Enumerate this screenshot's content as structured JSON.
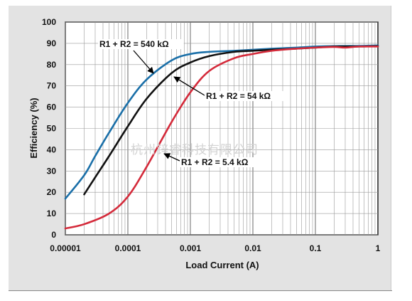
{
  "chart_data": {
    "type": "line",
    "xscale": "log",
    "xlim": [
      1e-05,
      1
    ],
    "ylim": [
      0,
      100
    ],
    "xlabel": "Load Current (A)",
    "ylabel": "Efficiency (%)",
    "x_tick_labels": [
      "0.00001",
      "0.0001",
      "0.001",
      "0.01",
      "0.1",
      "1"
    ],
    "x_ticks": [
      1e-05,
      0.0001,
      0.001,
      0.01,
      0.1,
      1
    ],
    "y_ticks": [
      0,
      10,
      20,
      30,
      40,
      50,
      60,
      70,
      80,
      90,
      100
    ],
    "grid": true,
    "series": [
      {
        "name": "R1 + R2 = 540 kΩ",
        "color": "#1a6fa8",
        "x": [
          1e-05,
          2e-05,
          3e-05,
          5e-05,
          0.0001,
          0.0002,
          0.0005,
          0.001,
          0.002,
          0.005,
          0.01,
          0.02,
          0.05,
          0.1,
          0.2,
          0.5,
          1
        ],
        "y": [
          17,
          28,
          37,
          48,
          62,
          73,
          82,
          85,
          86,
          86.5,
          87,
          87.5,
          88,
          88.5,
          88.7,
          88.8,
          89
        ]
      },
      {
        "name": "R1 + R2 = 54 kΩ",
        "color": "#111111",
        "x": [
          2e-05,
          3e-05,
          5e-05,
          0.0001,
          0.0002,
          0.0005,
          0.001,
          0.002,
          0.005,
          0.01,
          0.02,
          0.05,
          0.1,
          0.2,
          0.5,
          1
        ],
        "y": [
          19,
          27,
          37,
          51,
          64,
          76,
          81,
          84,
          86,
          86.5,
          87,
          87.5,
          88,
          88.5,
          88.5,
          88.7
        ]
      },
      {
        "name": "R1 + R2 = 5.4 kΩ",
        "color": "#d42a3a",
        "x": [
          1e-05,
          2e-05,
          5e-05,
          0.0001,
          0.0002,
          0.0005,
          0.001,
          0.002,
          0.005,
          0.01,
          0.02,
          0.05,
          0.1,
          0.2,
          0.3,
          0.5,
          1
        ],
        "y": [
          3,
          5,
          10,
          18,
          32,
          53,
          67,
          77,
          83,
          85,
          86.5,
          87.5,
          88,
          88.3,
          88,
          88.5,
          88.5
        ]
      }
    ],
    "annotations": [
      {
        "text": "R1 + R2 = 540 kΩ",
        "series": 0
      },
      {
        "text": "R1 + R2 = 54 kΩ",
        "series": 1
      },
      {
        "text": "R1 + R2 = 5.4 kΩ",
        "series": 2
      }
    ]
  },
  "watermark": "杭州锌睿科技有限公司"
}
